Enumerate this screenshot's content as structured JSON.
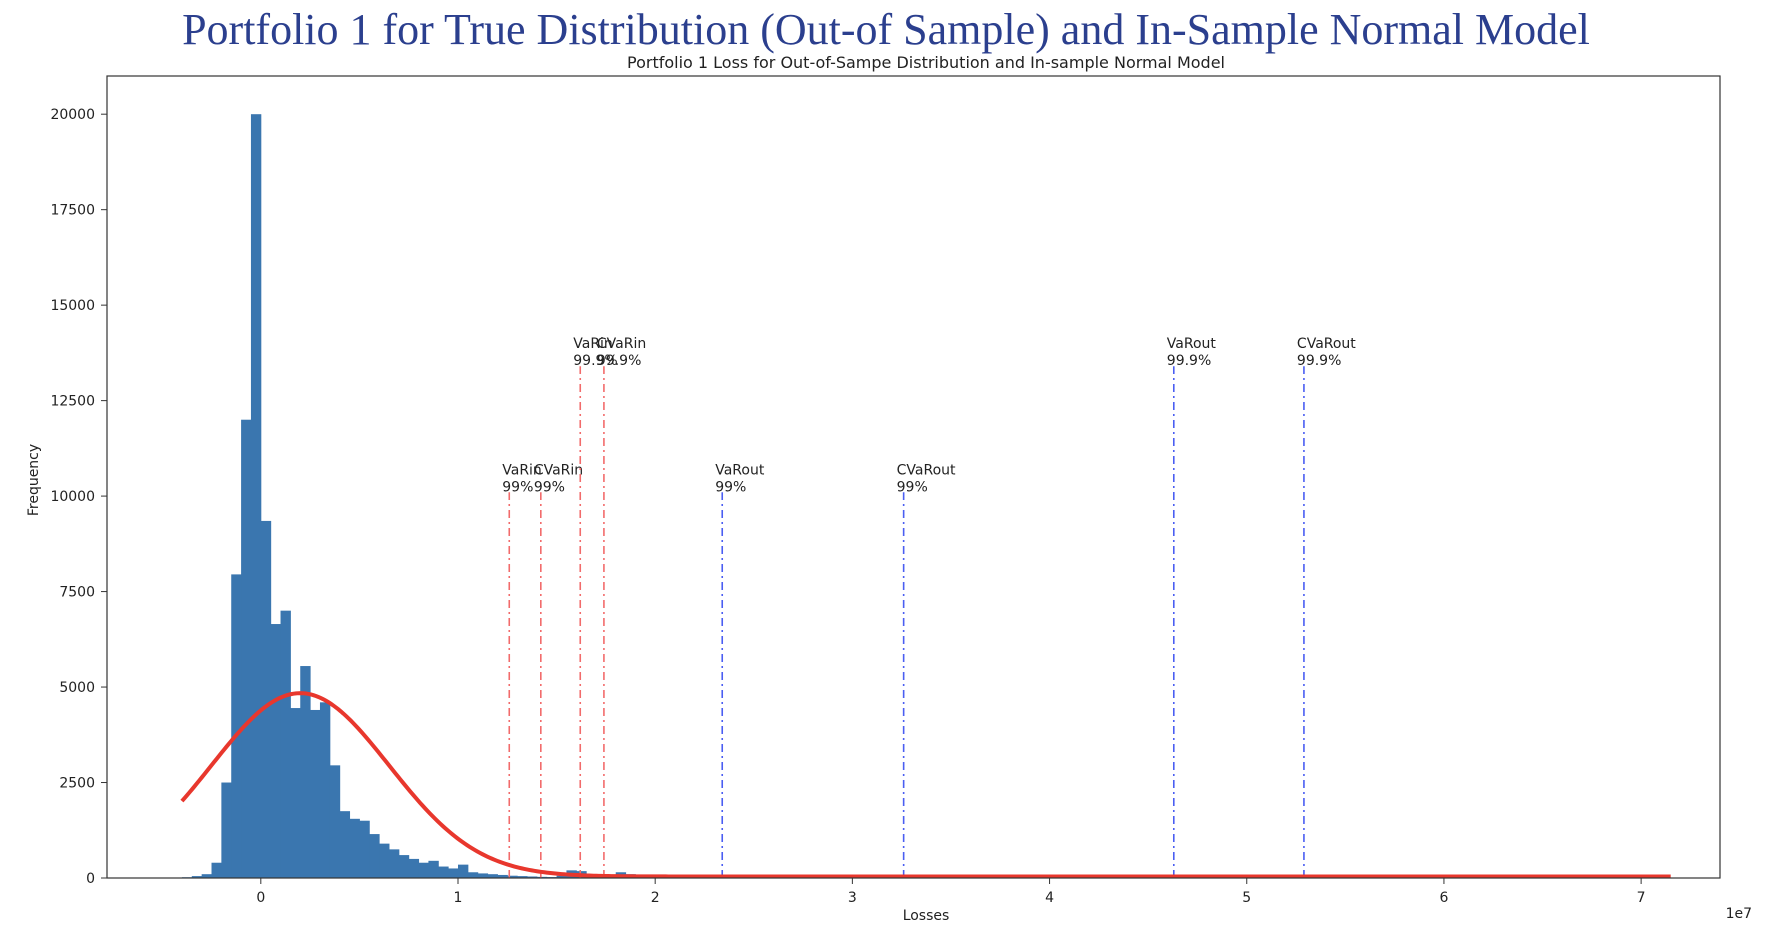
{
  "slide_title": "Portfolio 1 for True Distribution (Out-of Sample) and In-Sample Normal Model",
  "chart_data": {
    "type": "bar",
    "title": "Portfolio 1 Loss for Out-of-Sampe Distribution and In-sample Normal Model",
    "xlabel": "Losses",
    "ylabel": "Frequency",
    "x_offset_label": "1e7",
    "xlim": [
      -0.78,
      7.4
    ],
    "ylim": [
      0,
      21000
    ],
    "xticks": [
      0,
      1,
      2,
      3,
      4,
      5,
      6,
      7
    ],
    "yticks": [
      0,
      2500,
      5000,
      7500,
      10000,
      12500,
      15000,
      17500,
      20000
    ],
    "bar_width": 0.05,
    "bar_color": "#3a76af",
    "histogram": {
      "x_left": [
        -0.4,
        -0.35,
        -0.3,
        -0.25,
        -0.2,
        -0.15,
        -0.1,
        -0.05,
        0.0,
        0.05,
        0.1,
        0.15,
        0.2,
        0.25,
        0.3,
        0.35,
        0.4,
        0.45,
        0.5,
        0.55,
        0.6,
        0.65,
        0.7,
        0.75,
        0.8,
        0.85,
        0.9,
        0.95,
        1.0,
        1.05,
        1.1,
        1.15,
        1.2,
        1.25,
        1.3,
        1.35,
        1.4,
        1.45,
        1.5,
        1.55,
        1.6,
        1.65,
        1.7,
        1.75,
        1.8,
        1.85,
        1.9,
        1.95
      ],
      "counts": [
        20,
        50,
        100,
        400,
        2500,
        7950,
        12000,
        20000,
        9350,
        6650,
        7000,
        4450,
        5550,
        4400,
        4600,
        2950,
        1750,
        1550,
        1500,
        1150,
        900,
        750,
        600,
        500,
        400,
        450,
        300,
        250,
        350,
        150,
        120,
        100,
        80,
        60,
        50,
        40,
        30,
        25,
        60,
        200,
        180,
        50,
        40,
        80,
        150,
        100,
        40,
        20
      ]
    },
    "tail_bar_x": [
      2.5,
      2.75
    ],
    "tail_bar_counts": [
      30,
      20
    ],
    "normal_curve": {
      "color": "#e8372d",
      "x_start": -0.4,
      "x_end": 7.15,
      "mean": 0.2,
      "sd": 0.45,
      "peak": 4800,
      "baseline": 40
    },
    "risk_lines": [
      {
        "label": "VaRin\n99%",
        "x": 1.26,
        "top": 10100,
        "color": "#f26b6b"
      },
      {
        "label": "CVaRin\n99%",
        "x": 1.42,
        "top": 10100,
        "color": "#f26b6b"
      },
      {
        "label": "VaRin\n99.9%",
        "x": 1.62,
        "top": 13400,
        "color": "#f26b6b"
      },
      {
        "label": "CVaRin\n99.9%",
        "x": 1.74,
        "top": 13400,
        "color": "#f26b6b"
      },
      {
        "label": "VaRout\n99%",
        "x": 2.34,
        "top": 10100,
        "color": "#4a5ef2"
      },
      {
        "label": "CVaRout\n99%",
        "x": 3.26,
        "top": 10100,
        "color": "#4a5ef2"
      },
      {
        "label": "VaRout\n99.9%",
        "x": 4.63,
        "top": 13400,
        "color": "#4a5ef2"
      },
      {
        "label": "CVaRout\n99.9%",
        "x": 5.29,
        "top": 13400,
        "color": "#4a5ef2"
      }
    ]
  }
}
